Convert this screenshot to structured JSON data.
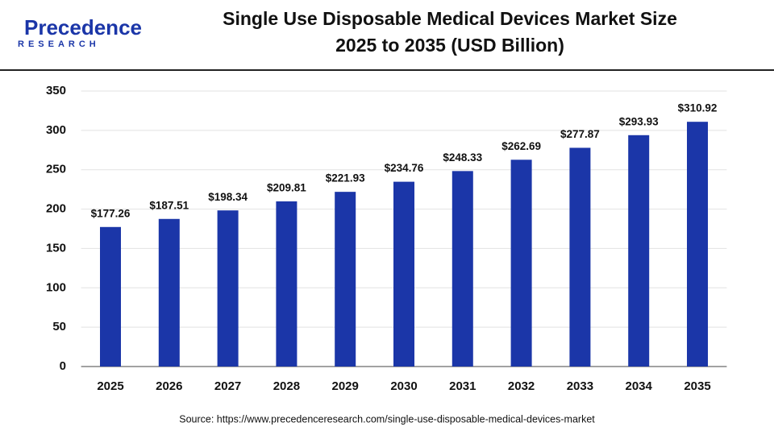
{
  "logo": {
    "name": "Precedence",
    "tagline": "RESEARCH"
  },
  "chart_data": {
    "type": "bar",
    "title": "Single Use Disposable Medical Devices Market Size",
    "subtitle": "2025 to 2035 (USD Billion)",
    "categories": [
      "2025",
      "2026",
      "2027",
      "2028",
      "2029",
      "2030",
      "2031",
      "2032",
      "2033",
      "2034",
      "2035"
    ],
    "values": [
      177.26,
      187.51,
      198.34,
      209.81,
      221.93,
      234.76,
      248.33,
      262.69,
      277.87,
      293.93,
      310.92
    ],
    "value_labels": [
      "$177.26",
      "$187.51",
      "$198.34",
      "$209.81",
      "$221.93",
      "$234.76",
      "$248.33",
      "$262.69",
      "$277.87",
      "$293.93",
      "$310.92"
    ],
    "color": "#1b36a8",
    "ylim": [
      0,
      350
    ],
    "yticks": [
      0,
      50,
      100,
      150,
      200,
      250,
      300,
      350
    ],
    "grid": true,
    "source": "Source: https://www.precedenceresearch.com/single-use-disposable-medical-devices-market"
  }
}
